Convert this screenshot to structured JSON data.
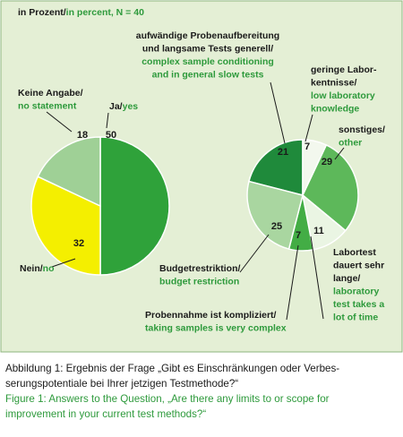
{
  "header": {
    "de": "in Prozent/",
    "en": "in percent, N = 40"
  },
  "chart_data": [
    {
      "type": "pie",
      "labels": [
        {
          "de": [
            "Ja/"
          ],
          "en": [
            "yes"
          ]
        },
        {
          "de": [
            "Nein/"
          ],
          "en": [
            "no"
          ]
        },
        {
          "de": [
            "Keine Angabe/"
          ],
          "en": [
            "no statement"
          ]
        }
      ],
      "values": [
        50,
        32,
        18
      ],
      "colors": [
        "#2fa23a",
        "#f4ef00",
        "#9fd096"
      ]
    },
    {
      "type": "pie",
      "labels": [
        {
          "de": [
            "aufwändige Probenaufbereitung",
            "und langsame Tests generell/"
          ],
          "en": [
            "complex sample conditioning",
            "and in general slow tests"
          ]
        },
        {
          "de": [
            "geringe Labor-",
            "kentnisse/"
          ],
          "en": [
            "low laboratory",
            "knowledge"
          ]
        },
        {
          "de": [
            "sonstiges/"
          ],
          "en": [
            "other"
          ]
        },
        {
          "de": [
            "Labortest",
            "dauert sehr",
            "lange/"
          ],
          "en": [
            "laboratory",
            "test takes a",
            "lot of time"
          ]
        },
        {
          "de": [
            "Probennahme ist kompliziert/"
          ],
          "en": [
            "taking samples is very complex"
          ]
        },
        {
          "de": [
            "Budgetrestriktion/"
          ],
          "en": [
            "budget restriction"
          ]
        }
      ],
      "values": [
        21,
        7,
        29,
        11,
        7,
        25
      ],
      "colors": [
        "#1f8a3b",
        "#f3f8ee",
        "#5db85a",
        "#eaf5e3",
        "#43ad45",
        "#a9d6a0"
      ]
    }
  ],
  "caption": {
    "de": [
      "Abbildung 1: Ergebnis der Frage „Gibt es Einschränkungen oder Verbes-",
      "serungspotentiale bei Ihrer jetzigen Testmethode?“"
    ],
    "en": [
      "Figure 1: Answers to the Question, „Are there any limits to or scope for",
      "improvement in your current test methods?“"
    ]
  }
}
